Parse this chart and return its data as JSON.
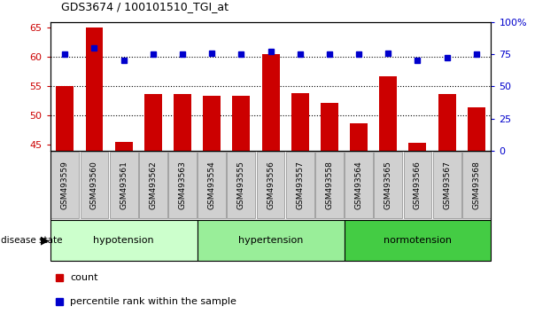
{
  "title": "GDS3674 / 100101510_TGI_at",
  "samples": [
    "GSM493559",
    "GSM493560",
    "GSM493561",
    "GSM493562",
    "GSM493563",
    "GSM493554",
    "GSM493555",
    "GSM493556",
    "GSM493557",
    "GSM493558",
    "GSM493564",
    "GSM493565",
    "GSM493566",
    "GSM493567",
    "GSM493568"
  ],
  "counts": [
    55.0,
    65.0,
    45.5,
    53.7,
    53.7,
    53.4,
    53.4,
    60.5,
    53.9,
    52.2,
    48.7,
    56.7,
    45.3,
    53.7,
    51.4
  ],
  "percentiles": [
    75,
    80,
    70,
    75,
    75,
    76,
    75,
    77,
    75,
    75,
    75,
    76,
    70,
    72,
    75
  ],
  "groups": [
    {
      "name": "hypotension",
      "indices": [
        0,
        1,
        2,
        3,
        4
      ],
      "color": "#ccffcc"
    },
    {
      "name": "hypertension",
      "indices": [
        5,
        6,
        7,
        8,
        9
      ],
      "color": "#99ee99"
    },
    {
      "name": "normotension",
      "indices": [
        10,
        11,
        12,
        13,
        14
      ],
      "color": "#44cc44"
    }
  ],
  "bar_color": "#cc0000",
  "dot_color": "#0000cc",
  "ylim_left": [
    44,
    66
  ],
  "ylim_right": [
    0,
    100
  ],
  "yticks_left": [
    45,
    50,
    55,
    60,
    65
  ],
  "yticks_right": [
    0,
    25,
    50,
    75,
    100
  ],
  "ytick_labels_right": [
    "0",
    "25",
    "50",
    "75",
    "100%"
  ],
  "grid_values": [
    50,
    55,
    60
  ],
  "tick_label_color_left": "#cc0000",
  "tick_label_color_right": "#0000cc"
}
